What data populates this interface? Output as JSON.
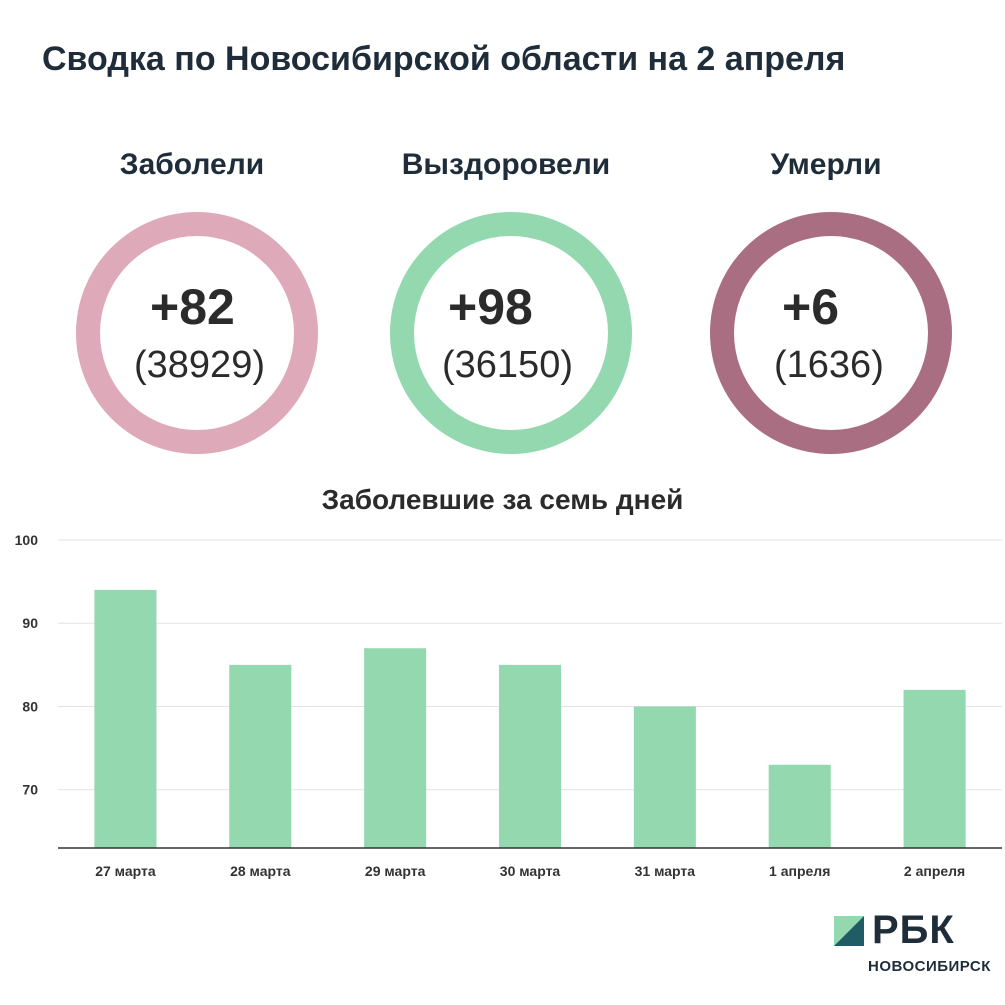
{
  "header": {
    "title": "Сводка по Новосибирской области на 2 апреля"
  },
  "stats": [
    {
      "label": "Заболели",
      "delta": "+82",
      "total": "(38929)",
      "color": "#dea9b9"
    },
    {
      "label": "Выздоровели",
      "delta": "+98",
      "total": "(36150)",
      "color": "#93d8af"
    },
    {
      "label": "Умерли",
      "delta": "+6",
      "total": "(1636)",
      "color": "#a96e81"
    }
  ],
  "chart_data": {
    "type": "bar",
    "title": "Заболевшие за семь дней",
    "categories": [
      "27 марта",
      "28 марта",
      "29 марта",
      "30 марта",
      "31 марта",
      "1 апреля",
      "2 апреля"
    ],
    "values": [
      94,
      85,
      87,
      85,
      80,
      73,
      82
    ],
    "ylim": [
      63,
      100
    ],
    "yticks": [
      70,
      80,
      90,
      100
    ],
    "grid": true,
    "bar_color": "#93d8af",
    "xlabel": "",
    "ylabel": ""
  },
  "brand": {
    "name": "РБК",
    "city": "НОВОСИБИРСК"
  }
}
